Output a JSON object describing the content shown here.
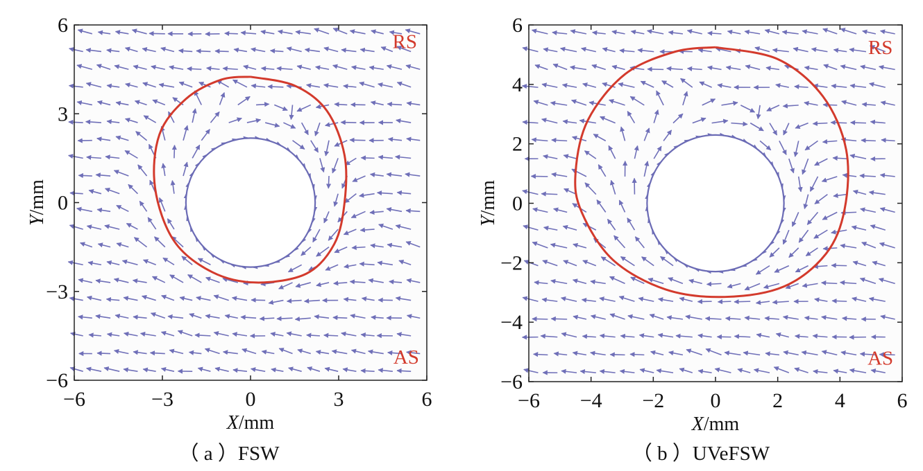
{
  "chart_data": [
    {
      "type": "scatter",
      "subtype": "vector-field",
      "caption": "（ a ）FSW",
      "xlabel_var": "X",
      "xlabel_unit": "/mm",
      "ylabel_var": "Y",
      "ylabel_unit": "/mm",
      "xlim": [
        -6,
        6
      ],
      "ylim": [
        -6,
        6
      ],
      "xticks": [
        -6,
        -3,
        0,
        3,
        6
      ],
      "yticks": [
        -6,
        -3,
        0,
        3,
        6
      ],
      "xtick_labels": [
        "−6",
        "−3",
        "0",
        "3",
        "6"
      ],
      "ytick_labels": [
        "−6",
        "−3",
        "0",
        "3",
        "6"
      ],
      "annotations": [
        {
          "text": "RS",
          "x": 5.25,
          "y": 5.45
        },
        {
          "text": "AS",
          "x": 5.3,
          "y": -5.2
        }
      ],
      "inner_circle": {
        "center": [
          0,
          0
        ],
        "radius": 2.2
      },
      "boundary_contour": {
        "color": "#d33a2c",
        "points": [
          [
            0,
            4.25
          ],
          [
            1.5,
            3.95
          ],
          [
            2.6,
            3.1
          ],
          [
            3.2,
            1.6
          ],
          [
            3.2,
            0
          ],
          [
            2.85,
            -1.4
          ],
          [
            1.9,
            -2.4
          ],
          [
            0.2,
            -2.7
          ],
          [
            -1.3,
            -2.35
          ],
          [
            -2.6,
            -1.3
          ],
          [
            -3.25,
            0.5
          ],
          [
            -3.1,
            2.3
          ],
          [
            -2.2,
            3.5
          ],
          [
            -1.0,
            4.15
          ],
          [
            0,
            4.25
          ]
        ]
      },
      "arrow_color": "#6f6fb8"
    },
    {
      "type": "scatter",
      "subtype": "vector-field",
      "caption": "（ b ）UVeFSW",
      "xlabel_var": "X",
      "xlabel_unit": "/mm",
      "ylabel_var": "Y",
      "ylabel_unit": "/mm",
      "xlim": [
        -6,
        6
      ],
      "ylim": [
        -6,
        6
      ],
      "xticks": [
        -6,
        -4,
        -2,
        0,
        2,
        4,
        6
      ],
      "yticks": [
        -6,
        -4,
        -2,
        0,
        2,
        4,
        6
      ],
      "xtick_labels": [
        "−6",
        "−4",
        "−2",
        "0",
        "2",
        "4",
        "6"
      ],
      "ytick_labels": [
        "−6",
        "−4",
        "−2",
        "0",
        "2",
        "4",
        "6"
      ],
      "annotations": [
        {
          "text": "RS",
          "x": 5.3,
          "y": 5.25
        },
        {
          "text": "AS",
          "x": 5.3,
          "y": -5.2
        }
      ],
      "inner_circle": {
        "center": [
          0,
          0
        ],
        "radius": 2.2
      },
      "boundary_contour": {
        "color": "#d33a2c",
        "points": [
          [
            0,
            5.25
          ],
          [
            2.0,
            4.85
          ],
          [
            3.45,
            3.6
          ],
          [
            4.2,
            1.8
          ],
          [
            4.15,
            -0.2
          ],
          [
            3.55,
            -1.7
          ],
          [
            2.2,
            -2.8
          ],
          [
            0.3,
            -3.15
          ],
          [
            -1.6,
            -2.9
          ],
          [
            -3.3,
            -1.9
          ],
          [
            -4.3,
            -0.3
          ],
          [
            -4.5,
            1.0
          ],
          [
            -4.1,
            2.8
          ],
          [
            -2.9,
            4.35
          ],
          [
            -1.3,
            5.1
          ],
          [
            0,
            5.25
          ]
        ]
      },
      "arrow_color": "#6f6fb8"
    }
  ]
}
